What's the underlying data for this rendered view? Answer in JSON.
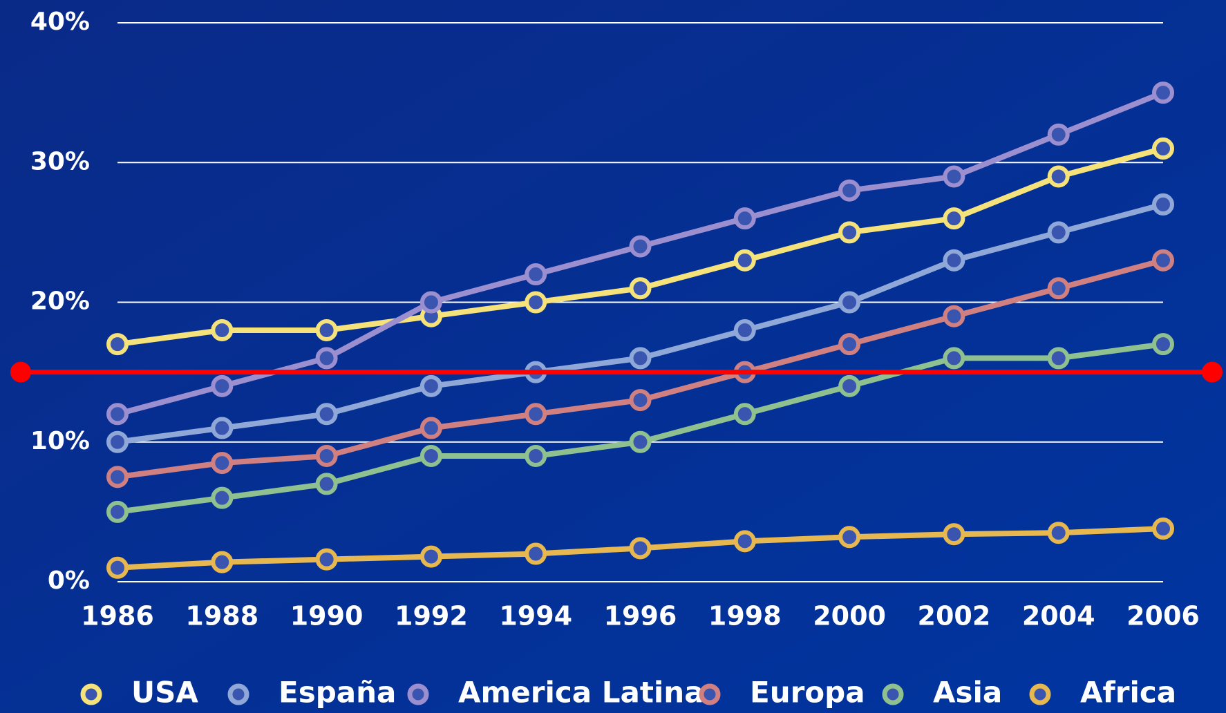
{
  "chart_data": {
    "type": "line",
    "x": [
      1986,
      1988,
      1990,
      1992,
      1994,
      1996,
      1998,
      2000,
      2002,
      2004,
      2006
    ],
    "xlim": [
      1986,
      2006
    ],
    "xticks": [
      1986,
      1988,
      1990,
      1992,
      1994,
      1996,
      1998,
      2000,
      2002,
      2004,
      2006
    ],
    "ylim": [
      0,
      40
    ],
    "yticks": [
      {
        "value": 0,
        "label": "0%"
      },
      {
        "value": 10,
        "label": "10%"
      },
      {
        "value": 20,
        "label": "20%"
      },
      {
        "value": 30,
        "label": "30%"
      },
      {
        "value": 40,
        "label": "40%"
      }
    ],
    "grid": true,
    "legend": "bottom",
    "reference_line": {
      "value": 15,
      "color": "#ff0000"
    },
    "series": [
      {
        "name": "USA",
        "color": "#f5e27a",
        "values": [
          17,
          18,
          18,
          19,
          20,
          21,
          23,
          25,
          26,
          29,
          31
        ]
      },
      {
        "name": "España",
        "color": "#8fa8d8",
        "values": [
          10,
          11,
          12,
          14,
          15,
          16,
          18,
          20,
          23,
          25,
          27
        ]
      },
      {
        "name": "America Latina",
        "color": "#9b8fd0",
        "values": [
          12,
          14,
          16,
          20,
          22,
          24,
          26,
          28,
          29,
          32,
          35
        ]
      },
      {
        "name": "Europa",
        "color": "#d08080",
        "values": [
          7.5,
          8.5,
          9,
          11,
          12,
          13,
          15,
          17,
          19,
          21,
          23
        ]
      },
      {
        "name": "Asia",
        "color": "#8fc08f",
        "values": [
          5,
          6,
          7,
          9,
          9,
          10,
          12,
          14,
          16,
          16,
          17
        ]
      },
      {
        "name": "Africa",
        "color": "#e8b850",
        "values": [
          1,
          1.4,
          1.6,
          1.8,
          2,
          2.4,
          2.9,
          3.2,
          3.4,
          3.5,
          3.8
        ]
      }
    ]
  }
}
